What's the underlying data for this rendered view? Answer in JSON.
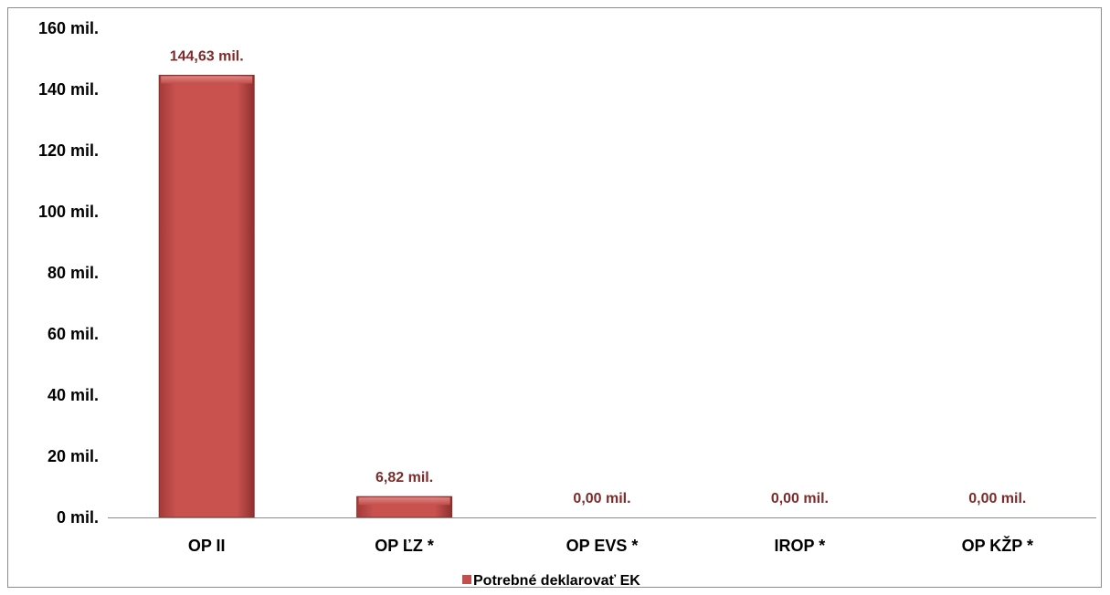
{
  "chart_data": {
    "type": "bar",
    "categories": [
      "OP II",
      "OP ĽZ *",
      "OP EVS *",
      "IROP *",
      "OP KŽP *"
    ],
    "series": [
      {
        "name": "Potrebné deklarovať EK",
        "values": [
          144.63,
          6.82,
          0.0,
          0.0,
          0.0
        ],
        "data_labels": [
          "144,63 mil.",
          "6,82 mil.",
          "0,00 mil.",
          "0,00 mil.",
          "0,00 mil."
        ]
      }
    ],
    "y_ticks": [
      "0 mil.",
      "20 mil.",
      "40 mil.",
      "60 mil.",
      "80 mil.",
      "100 mil.",
      "120 mil.",
      "140 mil.",
      "160 mil."
    ],
    "ylim": [
      0,
      160
    ],
    "ytick_step": 20,
    "grid": false,
    "legend_position": "bottom",
    "colors": {
      "bar": "#c0504d",
      "data_label": "#7b2c2b",
      "axis": "#8c8c8c"
    }
  }
}
